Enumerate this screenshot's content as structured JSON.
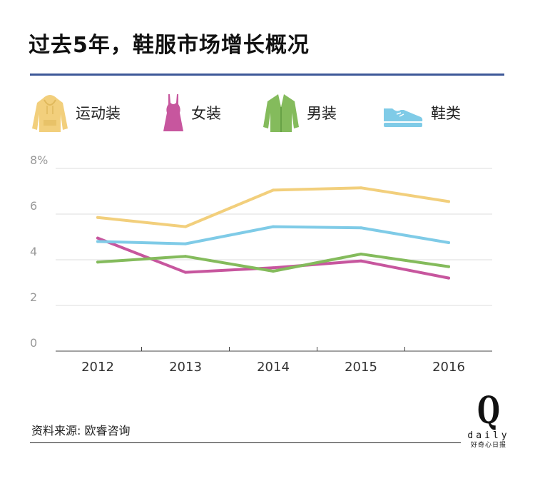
{
  "title": "过去5年，鞋服市场增长概况",
  "legend": [
    {
      "label": "运动装",
      "icon": "hoodie-icon",
      "color": "#f2cf7c"
    },
    {
      "label": "女装",
      "icon": "dress-icon",
      "color": "#c7569e"
    },
    {
      "label": "男装",
      "icon": "jacket-icon",
      "color": "#84bb5c"
    },
    {
      "label": "鞋类",
      "icon": "sneaker-icon",
      "color": "#7fcbe7"
    }
  ],
  "chart_data": {
    "type": "line",
    "title": "过去5年，鞋服市场增长概况",
    "x": [
      "2012",
      "2013",
      "2014",
      "2015",
      "2016"
    ],
    "y_ticks": [
      "0",
      "2",
      "4",
      "6",
      "8%"
    ],
    "ylim": [
      0,
      8
    ],
    "grid": true,
    "series": [
      {
        "name": "运动装",
        "color": "#f2cf7c",
        "values": [
          5.85,
          5.45,
          7.05,
          7.15,
          6.55
        ]
      },
      {
        "name": "女装",
        "color": "#c7569e",
        "values": [
          4.95,
          3.45,
          3.65,
          3.95,
          3.2
        ]
      },
      {
        "name": "男装",
        "color": "#84bb5c",
        "values": [
          3.9,
          4.15,
          3.5,
          4.25,
          3.7
        ]
      },
      {
        "name": "鞋类",
        "color": "#7fcbe7",
        "values": [
          4.8,
          4.7,
          5.45,
          5.4,
          4.75
        ]
      }
    ]
  },
  "source": "资料来源: 欧睿咨询",
  "logo": {
    "letter": "Q",
    "word": "daily",
    "sub": "好奇心日报"
  }
}
